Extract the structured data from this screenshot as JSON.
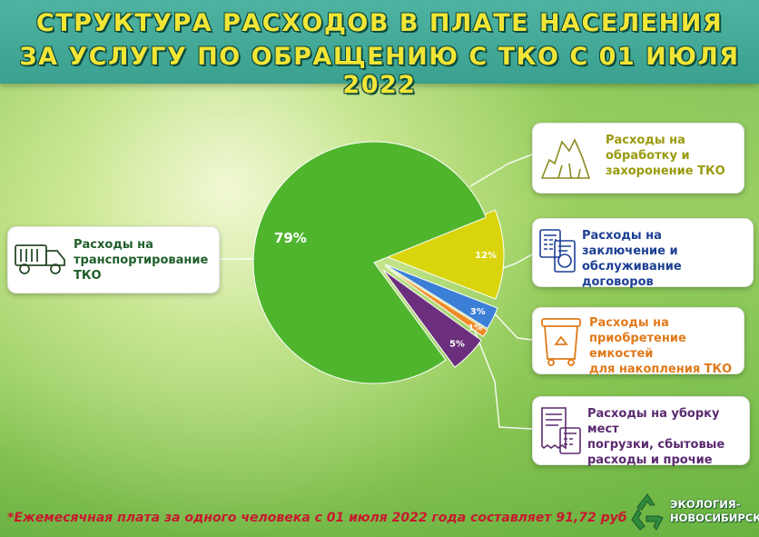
{
  "header": {
    "line1": "СТРУКТУРА РАСХОДОВ В ПЛАТЕ НАСЕЛЕНИЯ",
    "line2": "ЗА УСЛУГУ ПО ОБРАЩЕНИЮ С ТКО С 01 ИЮЛЯ 2022"
  },
  "chart_data": {
    "type": "pie",
    "slices": [
      {
        "label": "79%",
        "value": 79,
        "color": "#4fb52d",
        "category": "Расходы на транспортирование ТКО"
      },
      {
        "label": "12%",
        "value": 12,
        "color": "#d9d40c",
        "category": "Расходы на обработку и захоронение ТКО"
      },
      {
        "label": "3%",
        "value": 3,
        "color": "#3b7fd6",
        "category": "Расходы на заключение и обслуживание договоров"
      },
      {
        "label": "1%",
        "value": 1,
        "color": "#f08a24",
        "category": "Расходы на приобретение емкостей для накопления ТКО"
      },
      {
        "label": "5%",
        "value": 5,
        "color": "#6b2f7e",
        "category": "Расходы на уборку мест погрузки, сбытовые расходы и прочие"
      }
    ]
  },
  "boxes": {
    "transport": {
      "l1": "Расходы на",
      "l2": "транспортирование",
      "l3": "ТКО",
      "color": "#1f5f2a"
    },
    "processing": {
      "l1": "Расходы на",
      "l2": "обработку и",
      "l3": "захоронение ТКО",
      "color": "#9a9a10"
    },
    "contracts": {
      "l1": "Расходы на",
      "l2": "заключение и",
      "l3": "обслуживание договоров",
      "color": "#1c3f94"
    },
    "containers": {
      "l1": "Расходы на",
      "l2": "приобретение емкостей",
      "l3": "для накопления ТКО",
      "color": "#e07a1a"
    },
    "cleaning": {
      "l1": "Расходы на уборку мест",
      "l2": "погрузки, сбытовые",
      "l3": "расходы и прочие",
      "color": "#5a2a70"
    }
  },
  "footnote": "*Ежемесячная плата  за одного человека с 01 июля 2022 года составляет 91,72 руб",
  "logo": {
    "l1": "ЭКОЛОГИЯ-",
    "l2": "НОВОСИБИРСК"
  },
  "icons": {
    "transport": "garbage-truck-icon",
    "processing": "landfill-icon",
    "contracts": "calculator-document-icon",
    "containers": "waste-container-icon",
    "cleaning": "receipt-calculator-icon",
    "logo": "recycle-logo-icon"
  }
}
